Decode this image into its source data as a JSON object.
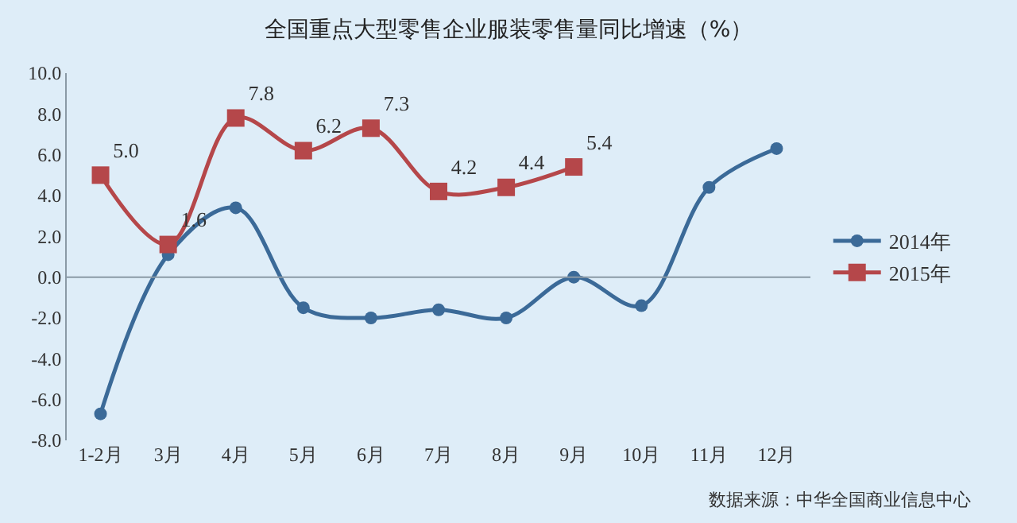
{
  "chart_data": {
    "type": "line",
    "title": "全国重点大型零售企业服装零售量同比增速（%）",
    "categories": [
      "1-2月",
      "3月",
      "4月",
      "5月",
      "6月",
      "7月",
      "8月",
      "9月",
      "10月",
      "11月",
      "12月"
    ],
    "series": [
      {
        "name": "2014年",
        "color": "#3b6a98",
        "marker": "circle",
        "values": [
          -6.7,
          1.1,
          3.4,
          -1.5,
          -2.0,
          -1.6,
          -2.0,
          0.0,
          -1.4,
          4.4,
          6.3
        ]
      },
      {
        "name": "2015年",
        "color": "#b5474a",
        "marker": "square",
        "values": [
          5.0,
          1.6,
          7.8,
          6.2,
          7.3,
          4.2,
          4.4,
          5.4,
          null,
          null,
          null
        ],
        "value_labels": [
          "5.0",
          "1.6",
          "7.8",
          "6.2",
          "7.3",
          "4.2",
          "4.4",
          "5.4",
          null,
          null,
          null
        ]
      }
    ],
    "ylim": [
      -8,
      10
    ],
    "yticks": [
      {
        "value": -8,
        "label": "-8.0"
      },
      {
        "value": -6,
        "label": "-6.0"
      },
      {
        "value": -4,
        "label": "-4.0"
      },
      {
        "value": -2,
        "label": "-2.0"
      },
      {
        "value": 0,
        "label": "0.0"
      },
      {
        "value": 2,
        "label": "2.0"
      },
      {
        "value": 4,
        "label": "4.0"
      },
      {
        "value": 6,
        "label": "6.0"
      },
      {
        "value": 8,
        "label": "8.0"
      },
      {
        "value": 10,
        "label": "10.0"
      }
    ],
    "grid": false,
    "legend": "right",
    "ref_lines": [
      {
        "axis": "y",
        "value": 0
      }
    ],
    "annotations": [
      "数据来源：中华全国商业信息中心"
    ]
  }
}
